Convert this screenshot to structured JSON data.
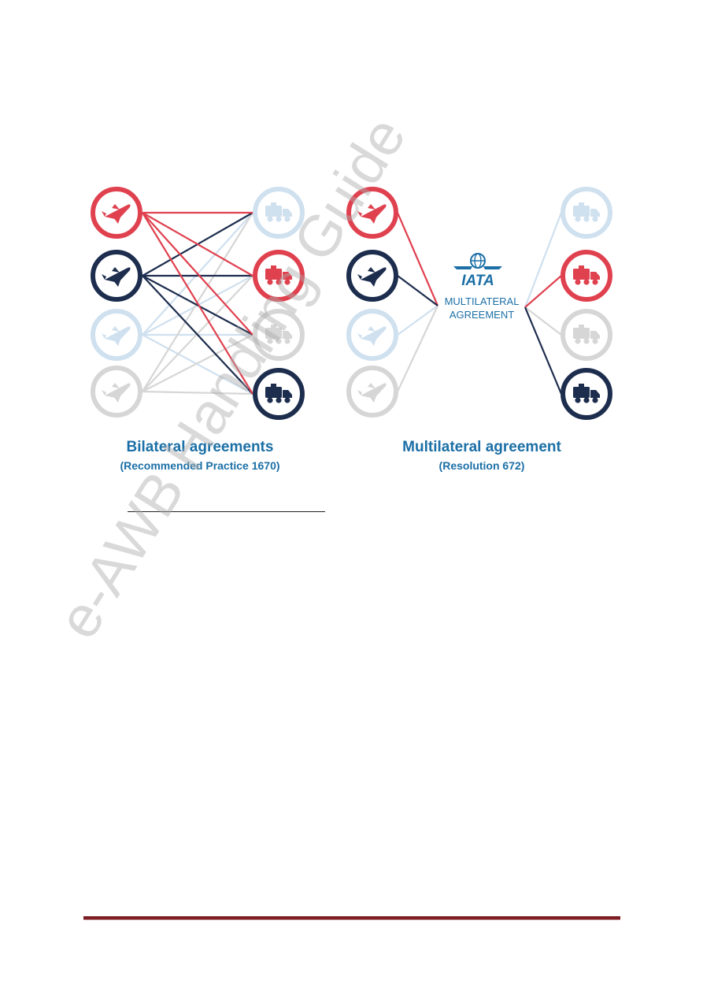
{
  "bilateral": {
    "title": "Bilateral agreements",
    "subtitle": "(Recommended Practice 1670)"
  },
  "multilateral": {
    "title": "Multilateral agreement",
    "subtitle": "(Resolution 672)",
    "hub_logo": "IATA",
    "hub_line1": "MULTILATERAL",
    "hub_line2": "AGREEMENT"
  },
  "colors": {
    "red": "#e0414f",
    "navy": "#1d2d4e",
    "light_blue": "#cfe0ef",
    "light_gray": "#d6d6d6",
    "caption_blue": "#1b6fa6",
    "footer_rule": "#7b1f24"
  },
  "icons": {
    "airline": "plane-icon",
    "forwarder": "truck-icon",
    "hub": "globe-icon"
  },
  "watermark": "e-AWB Handling Guide"
}
